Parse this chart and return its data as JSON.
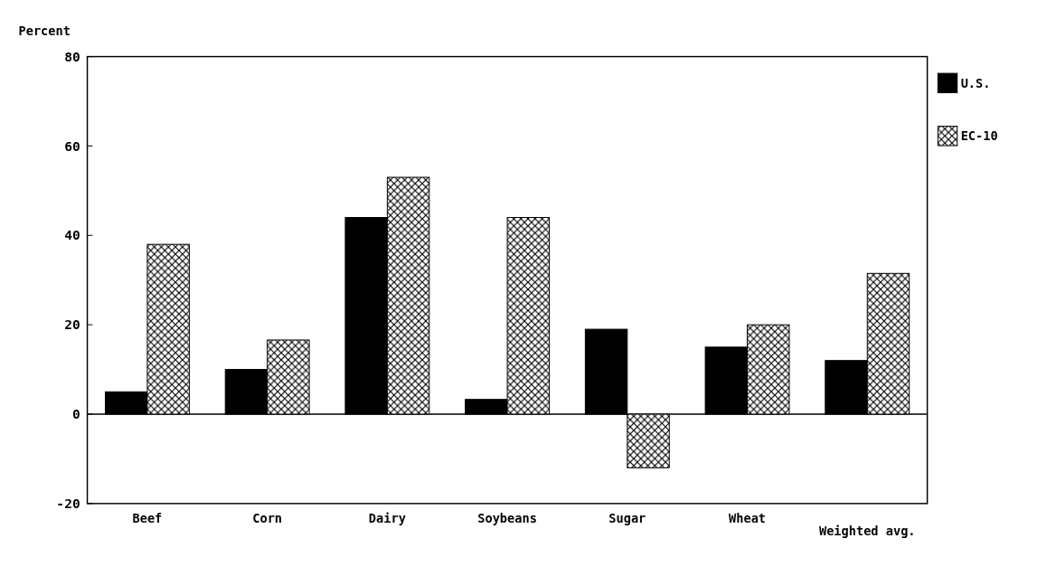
{
  "chart_data": {
    "type": "bar",
    "ylabel": "Percent",
    "categories": [
      "Beef",
      "Corn",
      "Dairy",
      "Soybeans",
      "Sugar",
      "Wheat",
      "Weighted avg."
    ],
    "series": [
      {
        "name": "U.S.",
        "color": "#000000",
        "values": [
          5,
          10,
          44,
          3.3,
          19,
          15,
          12
        ]
      },
      {
        "name": "EC-10",
        "color": "#000000",
        "values": [
          38,
          16.6,
          53,
          44,
          -12,
          20,
          31.5
        ]
      }
    ],
    "ylim": [
      -20,
      80
    ],
    "yticks": [
      -20,
      0,
      20,
      40,
      60,
      80
    ],
    "grid": false,
    "ref_lines": [
      {
        "axis": "y",
        "value": 0,
        "color": "#000000",
        "line_style": "solid"
      }
    ],
    "legend": "top right"
  }
}
